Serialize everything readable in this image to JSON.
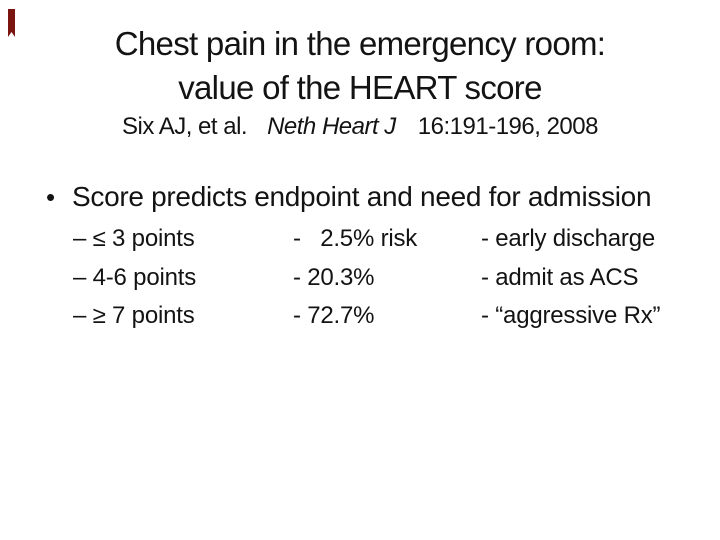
{
  "slide": {
    "title": {
      "line1": "Chest pain in the emergency room:",
      "line2": "value of the HEART score"
    },
    "citation": {
      "authors": "Six AJ, et al.",
      "journal": "Neth Heart J",
      "reference": "16:191-196, 2008"
    },
    "bullet": {
      "marker": "•",
      "text": "Score predicts endpoint and need for admission"
    },
    "score_rows": [
      {
        "points": "– ≤ 3 points",
        "risk": "-   2.5% risk",
        "management": "- early discharge"
      },
      {
        "points": "– 4-6 points",
        "risk": "- 20.3%",
        "management": "- admit as ACS"
      },
      {
        "points": "– ≥ 7 points",
        "risk": "- 72.7%",
        "management": "- “aggressive Rx”"
      }
    ],
    "colors": {
      "background": "#ffffff",
      "text": "#131313",
      "bookmark_red": "#7a150f"
    }
  }
}
